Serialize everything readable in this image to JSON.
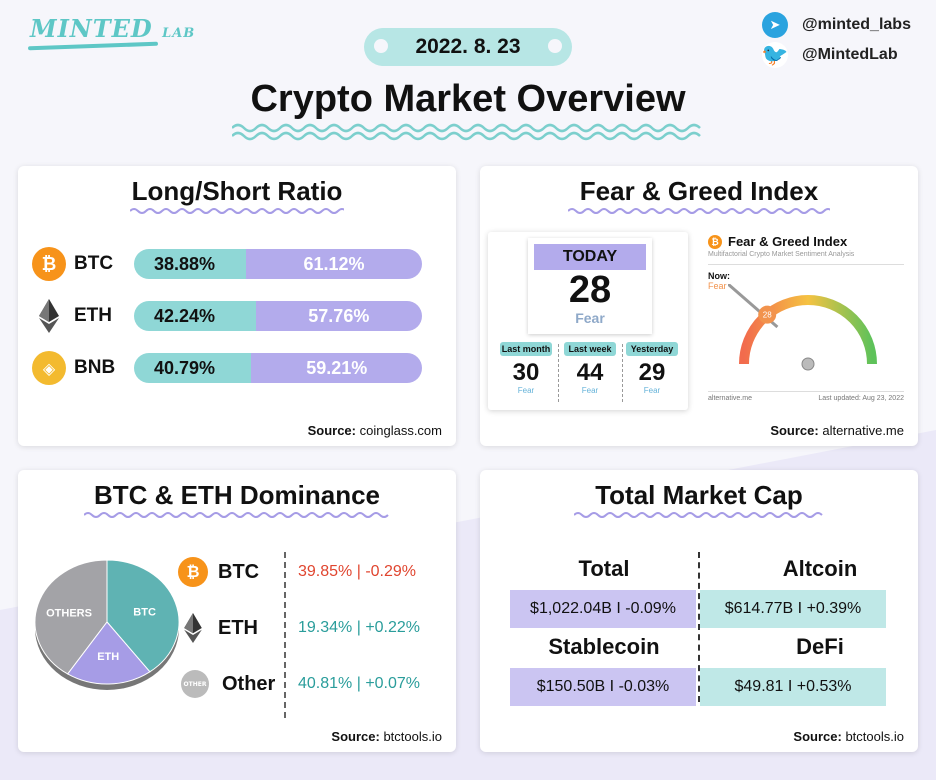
{
  "brand": {
    "logo_text": "MINTED",
    "logo_sub": "LAB"
  },
  "date": "2022. 8. 23",
  "title": "Crypto Market Overview",
  "social": [
    {
      "icon": "telegram-icon",
      "handle": "@minted_labs"
    },
    {
      "icon": "twitter-icon",
      "handle": "@MintedLab"
    }
  ],
  "long_short": {
    "title": "Long/Short Ratio",
    "rows": [
      {
        "coin": "BTC",
        "long": "38.88%",
        "short": "61.12%",
        "long_pct": 38.88
      },
      {
        "coin": "ETH",
        "long": "42.24%",
        "short": "57.76%",
        "long_pct": 42.24
      },
      {
        "coin": "BNB",
        "long": "40.79%",
        "short": "59.21%",
        "long_pct": 40.79
      }
    ],
    "source_label": "Source:",
    "source": "coinglass.com"
  },
  "fear_greed": {
    "title": "Fear & Greed Index",
    "today_label": "TODAY",
    "today_value": "28",
    "today_class": "Fear",
    "history": [
      {
        "label": "Last month",
        "value": "30",
        "class": "Fear"
      },
      {
        "label": "Last week",
        "value": "44",
        "class": "Fear"
      },
      {
        "label": "Yesterday",
        "value": "29",
        "class": "Fear"
      }
    ],
    "panel_title": "Fear & Greed Index",
    "panel_sub": "Multifactorial Crypto Market Sentiment Analysis",
    "now_label": "Now:",
    "now_class": "Fear",
    "gauge_value": 28,
    "gauge_badge": "28",
    "footer_left": "alternative.me",
    "footer_right": "Last updated: Aug 23, 2022",
    "source_label": "Source:",
    "source": "alternative.me"
  },
  "dominance": {
    "title": "BTC & ETH Dominance",
    "pie": [
      {
        "name": "OTHERS",
        "value": 40.81,
        "color": "#a3a3a7"
      },
      {
        "name": "BTC",
        "value": 39.85,
        "color": "#5fb3b3"
      },
      {
        "name": "ETH",
        "value": 19.34,
        "color": "#a69ce6"
      }
    ],
    "rows": [
      {
        "coin": "BTC",
        "value": "39.85% | -0.29%",
        "color": "#e0452f"
      },
      {
        "coin": "ETH",
        "value": "19.34% | +0.22%",
        "color": "#2a9d9b"
      },
      {
        "coin": "Other",
        "icon_text": "OTHER",
        "value": "40.81% | +0.07%",
        "color": "#2a9d9b"
      }
    ],
    "source_label": "Source:",
    "source": "btctools.io"
  },
  "market_cap": {
    "title": "Total Market Cap",
    "items": [
      {
        "label": "Total",
        "value": "$1,022.04B I -0.09%"
      },
      {
        "label": "Altcoin",
        "value": "$614.77B I +0.39%"
      },
      {
        "label": "Stablecoin",
        "value": "$150.50B I -0.03%"
      },
      {
        "label": "DeFi",
        "value": "$49.81 I +0.53%"
      }
    ],
    "source_label": "Source:",
    "source": "btctools.io"
  },
  "colors": {
    "teal": "#8fd7d6",
    "purple": "#b3abec",
    "btc": "#f7931a",
    "bnb": "#f3ba2f"
  }
}
